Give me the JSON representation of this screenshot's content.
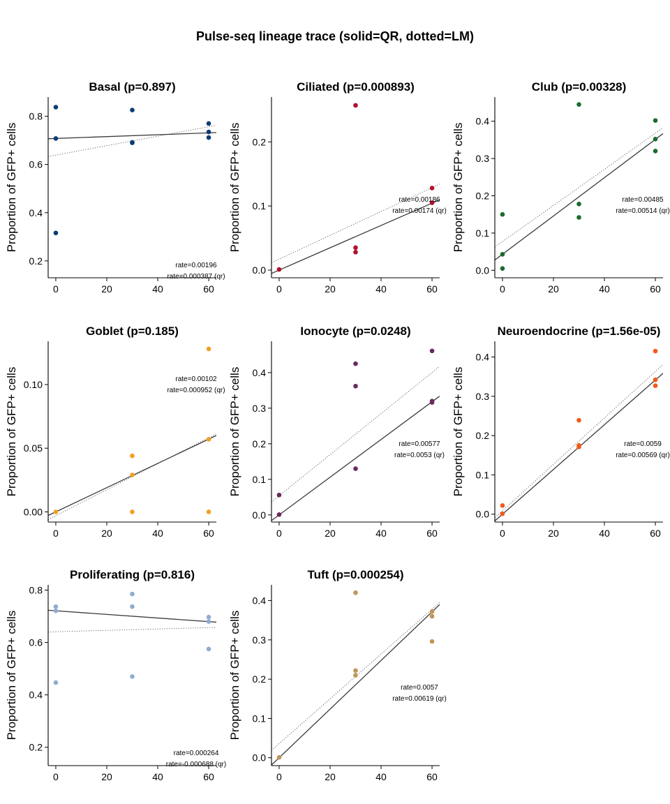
{
  "title": "Pulse-seq lineage trace (solid=QR, dotted=LM)",
  "chart_data": [
    {
      "type": "scatter",
      "title": "Basal (p=0.897)",
      "ylabel": "Proportion of GFP+ cells",
      "color": "#0a3d73",
      "xlim": [
        -3,
        63
      ],
      "ylim": [
        0.13,
        0.88
      ],
      "xticks": [
        0,
        20,
        40,
        60
      ],
      "yticks": [
        0.2,
        0.4,
        0.6,
        0.8
      ],
      "ytick_labels": [
        "0.2",
        "0.4",
        "0.6",
        "0.8"
      ],
      "points": [
        [
          0,
          0.838
        ],
        [
          0,
          0.708
        ],
        [
          0,
          0.316
        ],
        [
          30,
          0.826
        ],
        [
          30,
          0.692
        ],
        [
          30,
          0.69
        ],
        [
          60,
          0.77
        ],
        [
          60,
          0.735
        ],
        [
          60,
          0.712
        ]
      ],
      "qr_line": [
        0.708,
        0.000387
      ],
      "lm_line": [
        0.639,
        0.00196
      ],
      "annot": [
        "rate=0.00196",
        "rate=0.000387 (qr)"
      ],
      "annot_pos": "bottom-right"
    },
    {
      "type": "scatter",
      "title": "Ciliated (p=0.000893)",
      "ylabel": "Proportion of GFP+ cells",
      "color": "#b0122a",
      "xlim": [
        -3,
        63
      ],
      "ylim": [
        -0.012,
        0.27
      ],
      "xticks": [
        0,
        20,
        40,
        60
      ],
      "yticks": [
        0.0,
        0.1,
        0.2
      ],
      "ytick_labels": [
        "0.0",
        "0.1",
        "0.2"
      ],
      "points": [
        [
          0,
          0.001
        ],
        [
          30,
          0.257
        ],
        [
          30,
          0.035
        ],
        [
          30,
          0.028
        ],
        [
          60,
          0.128
        ],
        [
          60,
          0.105
        ]
      ],
      "qr_line": [
        0.0,
        0.00174
      ],
      "lm_line": [
        0.017,
        0.00186
      ],
      "annot": [
        "rate=0.00186",
        "rate=0.00174 (qr)"
      ],
      "annot_pos": "middle-right"
    },
    {
      "type": "scatter",
      "title": "Club (p=0.00328)",
      "ylabel": "Proportion of GFP+ cells",
      "color": "#1a6b2e",
      "xlim": [
        -3,
        63
      ],
      "ylim": [
        -0.02,
        0.465
      ],
      "xticks": [
        0,
        20,
        40,
        60
      ],
      "yticks": [
        0.0,
        0.1,
        0.2,
        0.3,
        0.4
      ],
      "ytick_labels": [
        "0.0",
        "0.1",
        "0.2",
        "0.3",
        "0.4"
      ],
      "points": [
        [
          0,
          0.15
        ],
        [
          0,
          0.043
        ],
        [
          0,
          0.005
        ],
        [
          30,
          0.445
        ],
        [
          30,
          0.178
        ],
        [
          30,
          0.142
        ],
        [
          60,
          0.402
        ],
        [
          60,
          0.352
        ],
        [
          60,
          0.32
        ]
      ],
      "qr_line": [
        0.043,
        0.00514
      ],
      "lm_line": [
        0.077,
        0.00485
      ],
      "annot": [
        "rate=0.00485",
        "rate=0.00514 (qr)"
      ],
      "annot_pos": "middle-right"
    },
    {
      "type": "scatter",
      "title": "Goblet (p=0.185)",
      "ylabel": "Proportion of GFP+ cells",
      "color": "#f0a020",
      "xlim": [
        -3,
        63
      ],
      "ylim": [
        -0.008,
        0.134
      ],
      "xticks": [
        0,
        20,
        40,
        60
      ],
      "yticks": [
        0.0,
        0.05,
        0.1
      ],
      "ytick_labels": [
        "0.00",
        "0.05",
        "0.10"
      ],
      "points": [
        [
          0,
          0.0
        ],
        [
          30,
          0.044
        ],
        [
          30,
          0.029
        ],
        [
          30,
          0.0
        ],
        [
          60,
          0.128
        ],
        [
          60,
          0.057
        ],
        [
          60,
          0.0
        ]
      ],
      "qr_line": [
        0.0,
        0.000952
      ],
      "lm_line": [
        -0.003,
        0.00102
      ],
      "annot": [
        "rate=0.00102",
        "rate=0.000952 (qr)"
      ],
      "annot_pos": "top-right"
    },
    {
      "type": "scatter",
      "title": "Ionocyte (p=0.0248)",
      "ylabel": "Proportion of GFP+ cells",
      "color": "#6a2a5e",
      "xlim": [
        -3,
        63
      ],
      "ylim": [
        -0.02,
        0.488
      ],
      "xticks": [
        0,
        20,
        40,
        60
      ],
      "yticks": [
        0.0,
        0.1,
        0.2,
        0.3,
        0.4
      ],
      "ytick_labels": [
        "0.0",
        "0.1",
        "0.2",
        "0.3",
        "0.4"
      ],
      "points": [
        [
          0,
          0.056
        ],
        [
          0,
          0.001
        ],
        [
          30,
          0.425
        ],
        [
          30,
          0.362
        ],
        [
          30,
          0.13
        ],
        [
          60,
          0.461
        ],
        [
          60,
          0.32
        ],
        [
          60,
          0.316
        ]
      ],
      "qr_line": [
        0.0,
        0.0053
      ],
      "lm_line": [
        0.054,
        0.00577
      ],
      "annot": [
        "rate=0.00577",
        "rate=0.0053 (qr)"
      ],
      "annot_pos": "middle-right"
    },
    {
      "type": "scatter",
      "title": "Neuroendocrine (p=1.56e-05)",
      "ylabel": "Proportion of GFP+ cells",
      "color": "#f05a1a",
      "xlim": [
        -3,
        63
      ],
      "ylim": [
        -0.02,
        0.44
      ],
      "xticks": [
        0,
        20,
        40,
        60
      ],
      "yticks": [
        0.0,
        0.1,
        0.2,
        0.3,
        0.4
      ],
      "ytick_labels": [
        "0.0",
        "0.1",
        "0.2",
        "0.3",
        "0.4"
      ],
      "points": [
        [
          0,
          0.022
        ],
        [
          0,
          0.001
        ],
        [
          30,
          0.239
        ],
        [
          30,
          0.175
        ],
        [
          30,
          0.171
        ],
        [
          60,
          0.415
        ],
        [
          60,
          0.342
        ],
        [
          60,
          0.327
        ]
      ],
      "qr_line": [
        0.0,
        0.00569
      ],
      "lm_line": [
        0.009,
        0.0059
      ],
      "annot": [
        "rate=0.0059",
        "rate=0.00569 (qr)"
      ],
      "annot_pos": "middle-right"
    },
    {
      "type": "scatter",
      "title": "Proliferating (p=0.816)",
      "ylabel": "Proportion of GFP+ cells",
      "color": "#90acd0",
      "xlim": [
        -3,
        63
      ],
      "ylim": [
        0.13,
        0.82
      ],
      "xticks": [
        0,
        20,
        40,
        60
      ],
      "yticks": [
        0.2,
        0.4,
        0.6,
        0.8
      ],
      "ytick_labels": [
        "0.2",
        "0.4",
        "0.6",
        "0.8"
      ],
      "points": [
        [
          0,
          0.737
        ],
        [
          0,
          0.721
        ],
        [
          0,
          0.447
        ],
        [
          30,
          0.785
        ],
        [
          30,
          0.737
        ],
        [
          30,
          0.47
        ],
        [
          60,
          0.697
        ],
        [
          60,
          0.68
        ],
        [
          60,
          0.575
        ]
      ],
      "qr_line": [
        0.721,
        -0.000688
      ],
      "lm_line": [
        0.641,
        0.000264
      ],
      "annot": [
        "rate=0.000264",
        "rate=-0.000688 (qr)"
      ],
      "annot_pos": "bottom-right"
    },
    {
      "type": "scatter",
      "title": "Tuft (p=0.000254)",
      "ylabel": "Proportion of GFP+ cells",
      "color": "#c0955a",
      "xlim": [
        -3,
        63
      ],
      "ylim": [
        -0.02,
        0.44
      ],
      "xticks": [
        0,
        20,
        40,
        60
      ],
      "yticks": [
        0.0,
        0.1,
        0.2,
        0.3,
        0.4
      ],
      "ytick_labels": [
        "0.0",
        "0.1",
        "0.2",
        "0.3",
        "0.4"
      ],
      "points": [
        [
          0,
          0.001
        ],
        [
          30,
          0.42
        ],
        [
          30,
          0.222
        ],
        [
          30,
          0.21
        ],
        [
          60,
          0.372
        ],
        [
          60,
          0.36
        ],
        [
          60,
          0.296
        ]
      ],
      "qr_line": [
        0.0,
        0.00619
      ],
      "lm_line": [
        0.036,
        0.0057
      ],
      "annot": [
        "rate=0.0057",
        "rate=0.00619 (qr)"
      ],
      "annot_pos": "middle-right"
    }
  ]
}
